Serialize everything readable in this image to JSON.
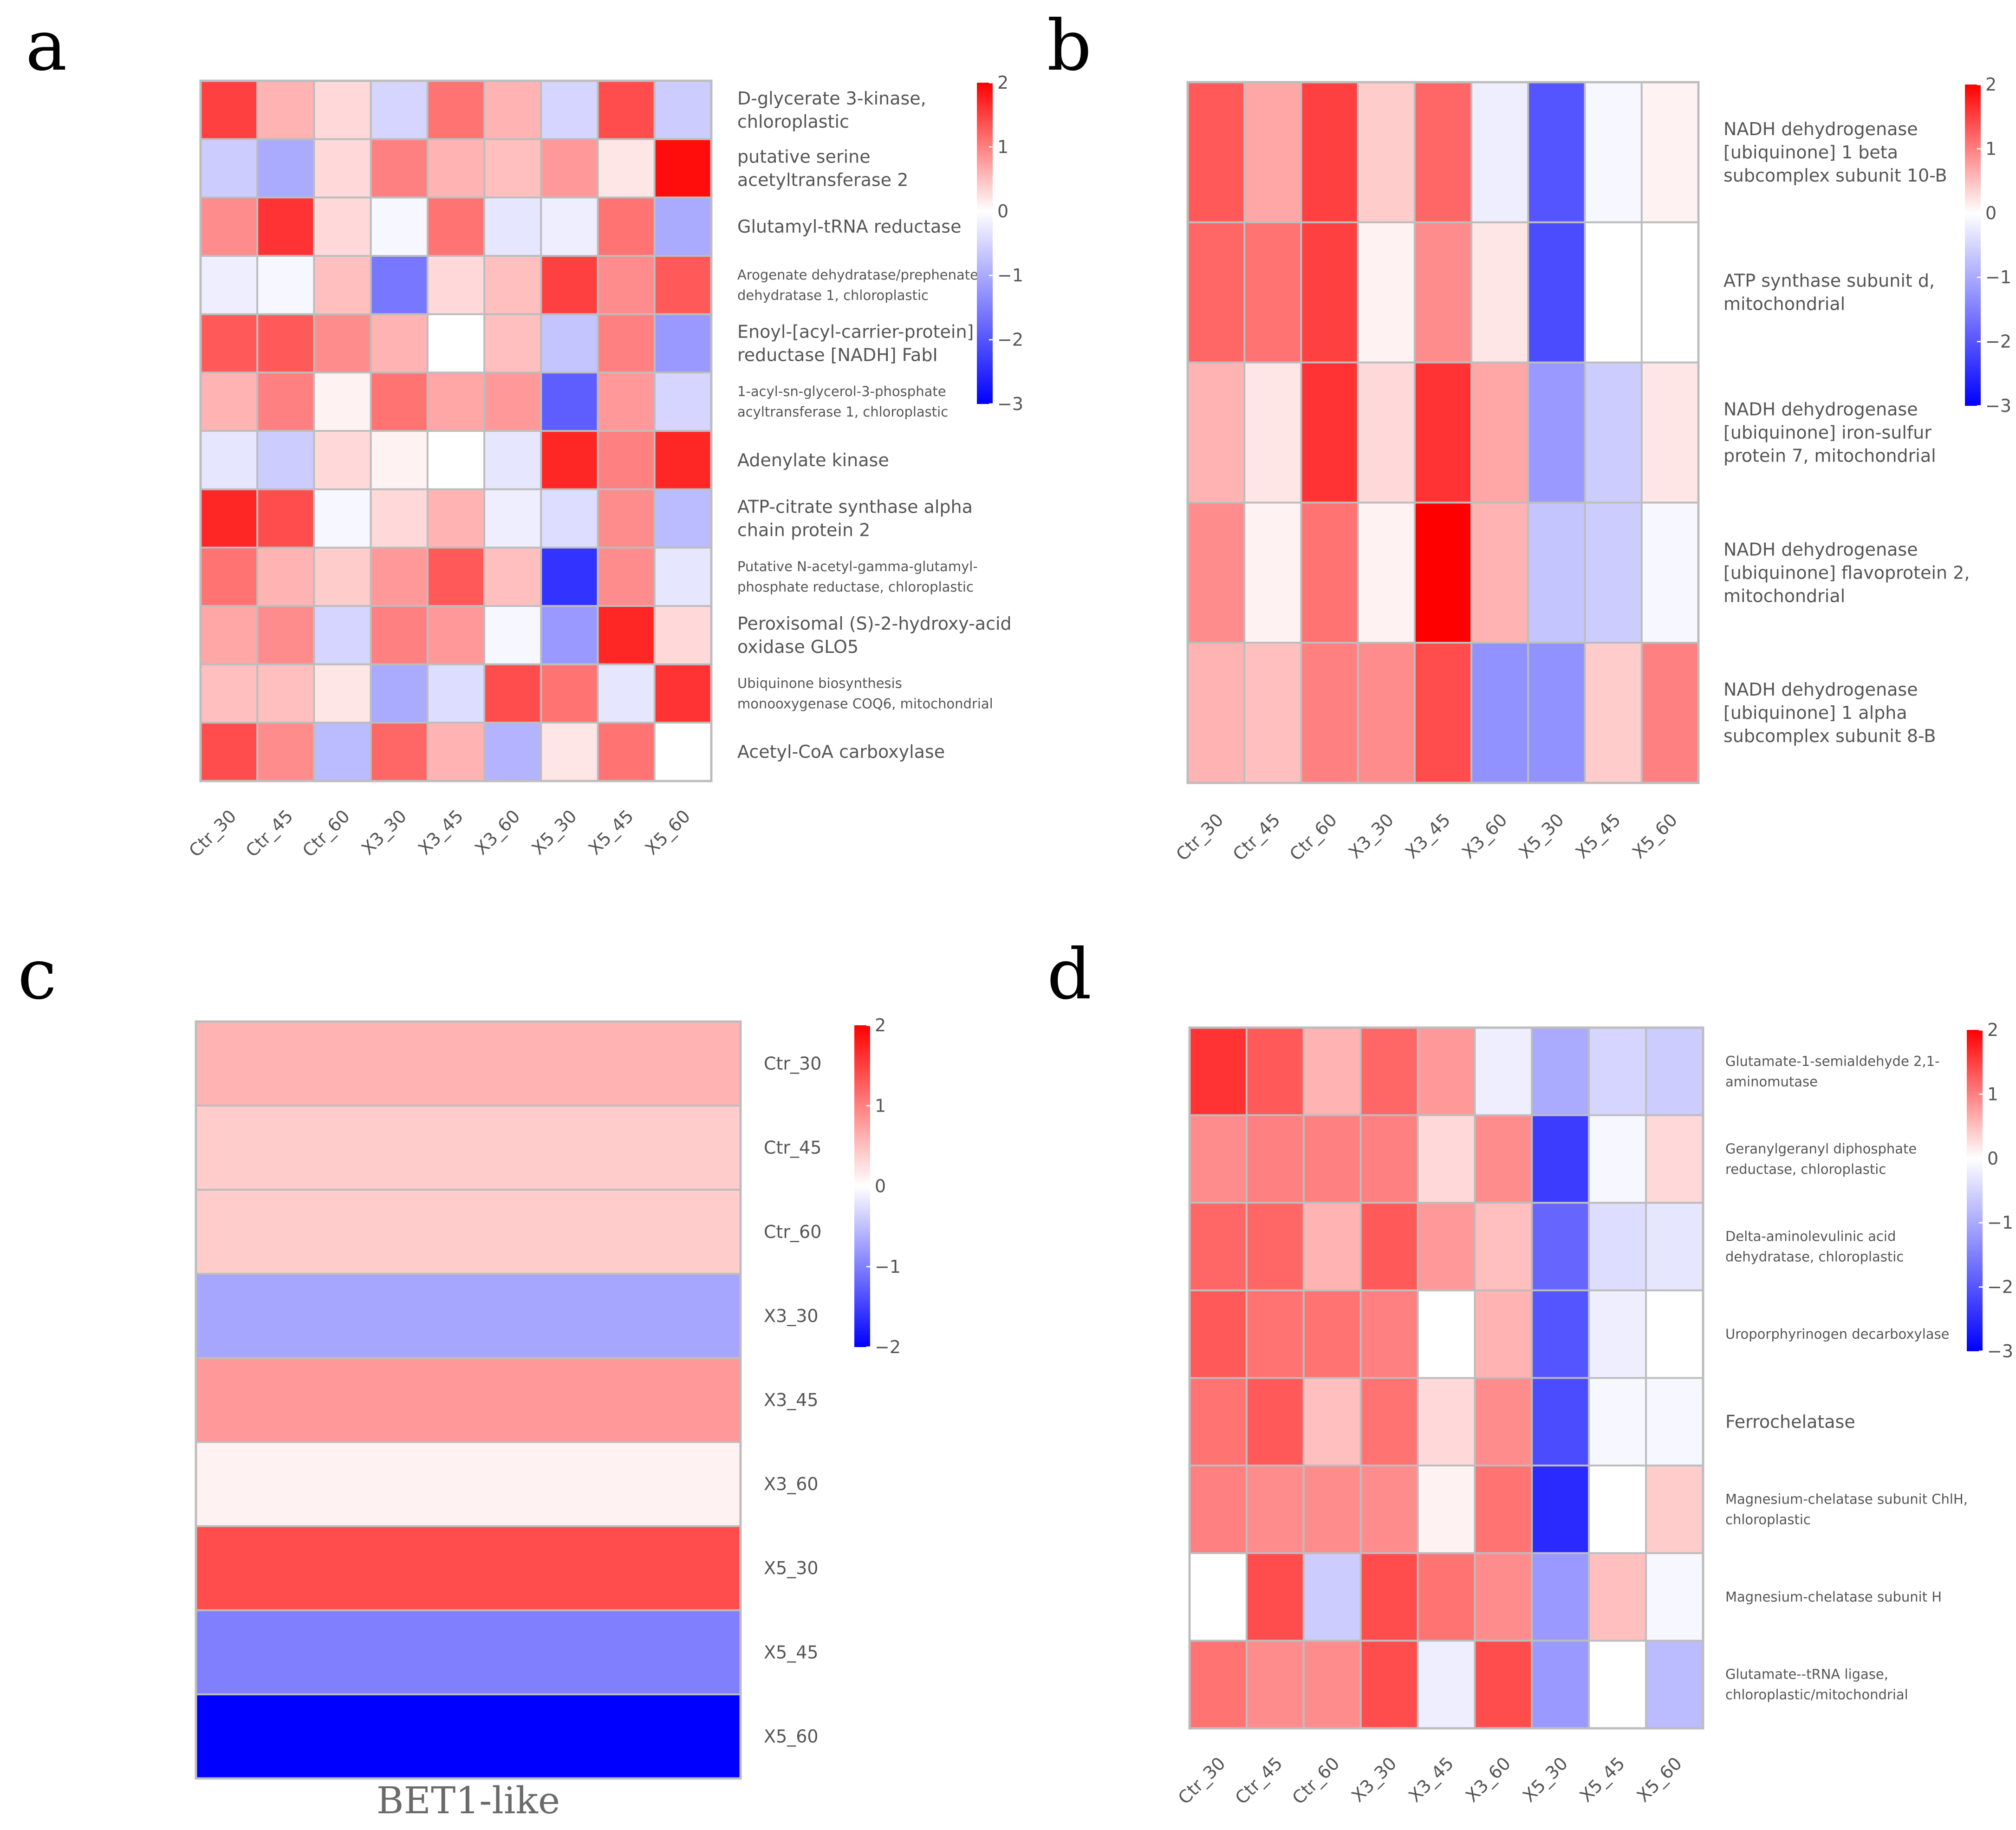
{
  "chart_data": [
    {
      "panel": "a",
      "type": "heatmap",
      "columns": [
        "Ctr_30",
        "Ctr_45",
        "Ctr_60",
        "X3_30",
        "X3_45",
        "X3_60",
        "X5_30",
        "X5_45",
        "X5_60"
      ],
      "rows": [
        {
          "label": [
            "D-glycerate 3-kinase,",
            "chloroplastic"
          ],
          "size": "normal"
        },
        {
          "label": [
            "putative serine",
            "acetyltransferase 2"
          ],
          "size": "normal"
        },
        {
          "label": [
            "Glutamyl-tRNA reductase"
          ],
          "size": "normal"
        },
        {
          "label": [
            "Arogenate dehydratase/prephenate",
            "dehydratase 1, chloroplastic"
          ],
          "size": "small"
        },
        {
          "label": [
            "Enoyl-[acyl-carrier-protein]",
            "reductase [NADH] FabI"
          ],
          "size": "normal"
        },
        {
          "label": [
            "1-acyl-sn-glycerol-3-phosphate",
            "acyltransferase 1, chloroplastic"
          ],
          "size": "small"
        },
        {
          "label": [
            "Adenylate kinase"
          ],
          "size": "normal"
        },
        {
          "label": [
            "ATP-citrate synthase alpha",
            "chain protein 2"
          ],
          "size": "normal"
        },
        {
          "label": [
            "Putative N-acetyl-gamma-glutamyl-",
            "phosphate reductase, chloroplastic"
          ],
          "size": "small"
        },
        {
          "label": [
            "Peroxisomal (S)-2-hydroxy-acid",
            "oxidase GLO5"
          ],
          "size": "normal"
        },
        {
          "label": [
            "Ubiquinone biosynthesis",
            "monooxygenase COQ6, mitochondrial"
          ],
          "size": "small"
        },
        {
          "label": [
            "Acetyl-CoA carboxylase"
          ],
          "size": "normal"
        }
      ],
      "values": [
        [
          1.5,
          0.6,
          0.3,
          -0.5,
          1.1,
          0.6,
          -0.5,
          1.4,
          -0.6
        ],
        [
          -0.6,
          -1.0,
          0.3,
          1.0,
          0.6,
          0.5,
          0.8,
          0.2,
          1.9
        ],
        [
          0.9,
          1.6,
          0.3,
          -0.1,
          1.1,
          -0.3,
          -0.2,
          1.1,
          -1.0
        ],
        [
          -0.2,
          -0.1,
          0.5,
          -1.6,
          0.3,
          0.5,
          1.5,
          0.9,
          1.3
        ],
        [
          1.3,
          1.3,
          0.9,
          0.6,
          0.0,
          0.5,
          -0.7,
          1.0,
          -1.2
        ],
        [
          0.6,
          1.0,
          0.1,
          1.1,
          0.7,
          0.8,
          -1.9,
          0.8,
          -0.5
        ],
        [
          -0.3,
          -0.6,
          0.3,
          0.1,
          0.0,
          -0.3,
          1.7,
          1.0,
          1.7
        ],
        [
          1.7,
          1.4,
          -0.1,
          0.3,
          0.6,
          -0.2,
          -0.4,
          0.9,
          -0.8
        ],
        [
          1.1,
          0.6,
          0.4,
          0.8,
          1.3,
          0.5,
          -2.4,
          0.9,
          -0.3
        ],
        [
          0.7,
          0.9,
          -0.5,
          1.0,
          0.8,
          -0.1,
          -1.2,
          1.7,
          0.3
        ],
        [
          0.5,
          0.5,
          0.2,
          -1.0,
          -0.4,
          1.4,
          1.1,
          -0.3,
          1.6
        ],
        [
          1.4,
          0.9,
          -0.8,
          1.2,
          0.6,
          -0.9,
          0.2,
          1.1,
          0.0
        ]
      ],
      "colorbar": {
        "min": -3,
        "max": 2,
        "ticks": [
          "2",
          "1",
          "0",
          "−1",
          "−2",
          "−3"
        ]
      }
    },
    {
      "panel": "b",
      "type": "heatmap",
      "columns": [
        "Ctr_30",
        "Ctr_45",
        "Ctr_60",
        "X3_30",
        "X3_45",
        "X3_60",
        "X5_30",
        "X5_45",
        "X5_60"
      ],
      "rows": [
        {
          "label": [
            "NADH dehydrogenase",
            "[ubiquinone] 1 beta",
            "subcomplex subunit 10-B"
          ],
          "size": "normal"
        },
        {
          "label": [
            "ATP synthase subunit d,",
            "mitochondrial"
          ],
          "size": "normal"
        },
        {
          "label": [
            "NADH dehydrogenase",
            "[ubiquinone] iron-sulfur",
            "protein 7, mitochondrial"
          ],
          "size": "normal"
        },
        {
          "label": [
            "NADH dehydrogenase",
            "[ubiquinone] flavoprotein 2,",
            "mitochondrial"
          ],
          "size": "normal"
        },
        {
          "label": [
            "NADH dehydrogenase",
            "[ubiquinone] 1 alpha",
            "subcomplex subunit 8-B"
          ],
          "size": "normal"
        }
      ],
      "values": [
        [
          1.3,
          0.7,
          1.5,
          0.4,
          1.2,
          -0.2,
          -2.0,
          -0.1,
          0.1
        ],
        [
          1.2,
          1.1,
          1.5,
          0.1,
          0.9,
          0.2,
          -2.1,
          0.0,
          0.0
        ],
        [
          0.6,
          0.2,
          1.6,
          0.3,
          1.6,
          0.7,
          -1.2,
          -0.6,
          0.2
        ],
        [
          0.9,
          0.1,
          1.1,
          0.1,
          2.0,
          0.6,
          -0.7,
          -0.6,
          -0.1
        ],
        [
          0.6,
          0.5,
          1.0,
          0.9,
          1.4,
          -1.3,
          -1.3,
          0.4,
          1.0
        ]
      ],
      "colorbar": {
        "min": -3,
        "max": 2,
        "ticks": [
          "2",
          "1",
          "0",
          "−1",
          "−2",
          "−3"
        ]
      }
    },
    {
      "panel": "c",
      "type": "heatmap",
      "columns": [
        "BET1-like"
      ],
      "rows": [
        {
          "label": [
            "Ctr_30"
          ],
          "size": "normal"
        },
        {
          "label": [
            "Ctr_45"
          ],
          "size": "normal"
        },
        {
          "label": [
            "Ctr_60"
          ],
          "size": "normal"
        },
        {
          "label": [
            "X3_30"
          ],
          "size": "normal"
        },
        {
          "label": [
            "X3_45"
          ],
          "size": "normal"
        },
        {
          "label": [
            "X3_60"
          ],
          "size": "normal"
        },
        {
          "label": [
            "X5_30"
          ],
          "size": "normal"
        },
        {
          "label": [
            "X5_45"
          ],
          "size": "normal"
        },
        {
          "label": [
            "X5_60"
          ],
          "size": "normal"
        }
      ],
      "values": [
        [
          0.6
        ],
        [
          0.4
        ],
        [
          0.4
        ],
        [
          -0.7
        ],
        [
          0.8
        ],
        [
          0.1
        ],
        [
          1.4
        ],
        [
          -1.0
        ],
        [
          -2.0
        ]
      ],
      "colorbar": {
        "min": -2,
        "max": 2,
        "ticks": [
          "2",
          "1",
          "0",
          "−1",
          "−2"
        ]
      }
    },
    {
      "panel": "d",
      "type": "heatmap",
      "columns": [
        "Ctr_30",
        "Ctr_45",
        "Ctr_60",
        "X3_30",
        "X3_45",
        "X3_60",
        "X5_30",
        "X5_45",
        "X5_60"
      ],
      "rows": [
        {
          "label": [
            "Glutamate-1-semialdehyde 2,1-",
            "aminomutase"
          ],
          "size": "small"
        },
        {
          "label": [
            "Geranylgeranyl diphosphate",
            "reductase, chloroplastic"
          ],
          "size": "small"
        },
        {
          "label": [
            "Delta-aminolevulinic acid",
            "dehydratase, chloroplastic"
          ],
          "size": "small"
        },
        {
          "label": [
            "Uroporphyrinogen decarboxylase"
          ],
          "size": "small"
        },
        {
          "label": [
            "Ferrochelatase"
          ],
          "size": "normal"
        },
        {
          "label": [
            "Magnesium-chelatase subunit ChlH,",
            "chloroplastic"
          ],
          "size": "small"
        },
        {
          "label": [
            "Magnesium-chelatase subunit H"
          ],
          "size": "small"
        },
        {
          "label": [
            "Glutamate--tRNA ligase,",
            "chloroplastic/mitochondrial"
          ],
          "size": "small"
        }
      ],
      "values": [
        [
          1.6,
          1.3,
          0.6,
          1.2,
          0.8,
          -0.2,
          -1.0,
          -0.5,
          -0.6
        ],
        [
          0.9,
          1.0,
          1.0,
          1.0,
          0.3,
          0.9,
          -2.3,
          -0.1,
          0.3
        ],
        [
          1.2,
          1.2,
          0.6,
          1.3,
          0.8,
          0.5,
          -1.8,
          -0.4,
          -0.3
        ],
        [
          1.3,
          1.1,
          1.1,
          1.0,
          0.0,
          0.6,
          -2.0,
          -0.2,
          0.0
        ],
        [
          1.1,
          1.3,
          0.5,
          1.1,
          0.3,
          0.9,
          -2.1,
          -0.1,
          -0.1
        ],
        [
          1.0,
          0.9,
          0.9,
          0.9,
          0.1,
          1.1,
          -2.5,
          0.0,
          0.4
        ],
        [
          0.0,
          1.4,
          -0.6,
          1.4,
          1.1,
          0.9,
          -1.2,
          0.5,
          -0.1
        ],
        [
          1.1,
          0.9,
          0.9,
          1.4,
          -0.2,
          1.4,
          -1.2,
          0.0,
          -0.8
        ]
      ],
      "colorbar": {
        "min": -3,
        "max": 2,
        "ticks": [
          "2",
          "1",
          "0",
          "−1",
          "−2",
          "−3"
        ]
      }
    }
  ],
  "panels": {
    "a": {
      "letter": "a"
    },
    "b": {
      "letter": "b"
    },
    "c": {
      "letter": "c"
    },
    "d": {
      "letter": "d"
    }
  }
}
